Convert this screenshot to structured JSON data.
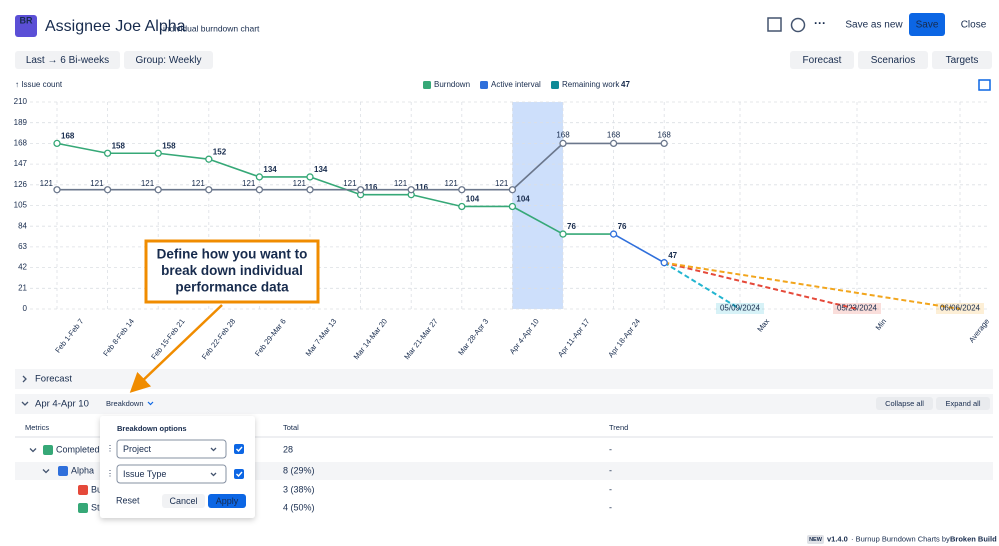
{
  "header": {
    "logo": "BR",
    "title": "Assignee Joe Alpha",
    "subtitle": "individual burndown chart",
    "buttons": [
      "Save as new",
      "Save",
      "Close"
    ]
  },
  "toolbar": {
    "left": [
      "Last → 6 Bi-weeks",
      "Group: Weekly"
    ],
    "right": [
      "Forecast",
      "Scenarios",
      "Targets"
    ]
  },
  "chart_data": {
    "type": "line",
    "y_label": "↑ Issue count",
    "categories": [
      "Feb 1-Feb 7",
      "Feb 8-Feb 14",
      "Feb 15-Feb 21",
      "Feb 22-Feb 28",
      "Feb 29-Mar 6",
      "Mar 7-Mar 13",
      "Mar 14-Mar 20",
      "Mar 21-Mar 27",
      "Mar 28-Apr 3",
      "Apr 4-Apr 10",
      "Apr 11-Apr 17",
      "Apr 18-Apr 24",
      null
    ],
    "series": [
      {
        "name": "Burndown",
        "color": "#36a877",
        "last_color": "#2f6fdb",
        "values": [
          168,
          158,
          158,
          152,
          134,
          134,
          116,
          116,
          104,
          104,
          76,
          76,
          47
        ]
      },
      {
        "color": "#6b778c",
        "values": [
          121,
          121,
          121,
          121,
          121,
          121,
          121,
          121,
          121,
          121,
          168,
          168,
          168
        ]
      }
    ],
    "active_interval": {
      "name": "Active interval",
      "color": "#cddffb"
    },
    "remaining_work": {
      "name": "Remaining work",
      "value": 47,
      "color": "#0e8a96"
    },
    "forecasts": [
      {
        "name": "Max",
        "date": "05/09/2024",
        "color": "#22b5d0",
        "value": 0
      },
      {
        "name": "Min",
        "date": "05/23/2024",
        "color": "#e5493a",
        "value": 0
      },
      {
        "name": "Average",
        "date": "06/06/2024",
        "color": "#f2a51c",
        "value": 0
      }
    ],
    "ylim": [
      0,
      210
    ],
    "yticks": [
      0,
      21,
      42,
      63,
      84,
      105,
      126,
      147,
      168,
      189,
      210
    ],
    "grid": true
  },
  "callout": [
    "Define how you want to",
    "break down individual",
    "performance data"
  ],
  "sections": {
    "forecast": "Forecast",
    "interval": "Apr 4-Apr 10",
    "breakdown": "Breakdown",
    "collapse": "Collapse all",
    "expand": "Expand all"
  },
  "table": {
    "headers": [
      "Metrics",
      "Total",
      "Trend"
    ],
    "rows": [
      {
        "name": "Completed",
        "total": 28,
        "trend": "-"
      },
      {
        "name": "Alpha",
        "total": "8 (29%)",
        "trend": "-"
      },
      {
        "name": "Bug",
        "total": "3 (38%)",
        "trend": "-"
      },
      {
        "name": "Story",
        "total": "4 (50%)",
        "trend": "-"
      }
    ]
  },
  "popup": {
    "title": "Breakdown options",
    "fields": [
      "Project",
      "Issue Type"
    ],
    "buttons": [
      "Reset",
      "Cancel",
      "Apply"
    ]
  },
  "footer": {
    "badge": "NEW",
    "version": "v1.4.0",
    "text": "· Burnup Burndown Charts by",
    "link": "Broken Build"
  }
}
